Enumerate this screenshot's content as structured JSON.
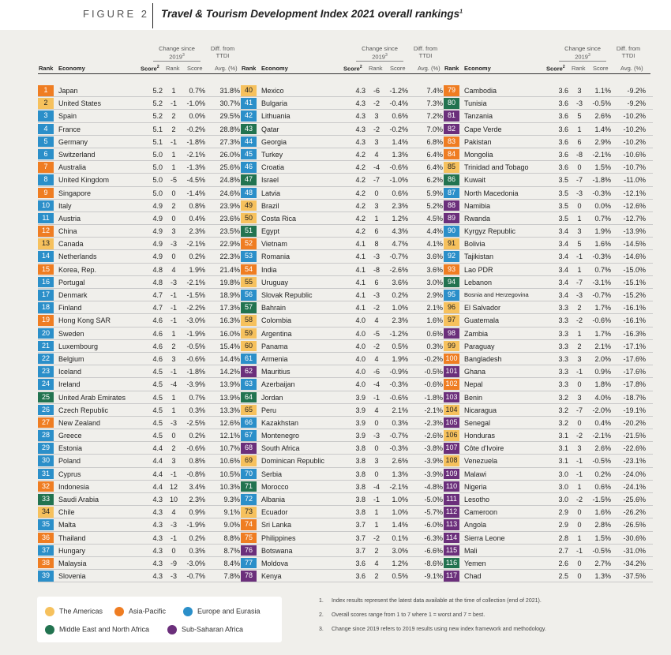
{
  "figure": {
    "label": "FIGURE 2",
    "title": "Travel & Tourism Development Index 2021 overall rankings",
    "title_sup": "1"
  },
  "table_headers": {
    "rank": "Rank",
    "economy": "Economy",
    "score": "Score",
    "score_sup": "2",
    "change_group": "Change since 2019",
    "change_sup": "3",
    "change_rank": "Rank",
    "change_score": "Score",
    "diff_group": "Diff. from TTDI",
    "diff_sub": "Avg. (%)"
  },
  "region_colors": {
    "am": "#f6c15d",
    "ap": "#ef7d22",
    "ee": "#2b8fc9",
    "me": "#227350",
    "ss": "#6b2f7b"
  },
  "legend": [
    {
      "region": "am",
      "label": "The Americas"
    },
    {
      "region": "ap",
      "label": "Asia-Pacific"
    },
    {
      "region": "ee",
      "label": "Europe and Eurasia"
    },
    {
      "region": "me",
      "label": "Middle East and North Africa"
    },
    {
      "region": "ss",
      "label": "Sub-Saharan Africa"
    }
  ],
  "notes": [
    {
      "num": "1.",
      "text": "Index results represent the latest data available at the time of collection (end of 2021)."
    },
    {
      "num": "2.",
      "text": "Overall scores range from 1 to 7 where 1 = worst and 7 = best."
    },
    {
      "num": "3.",
      "text": "Change since 2019 refers to 2019 results using new index framework and methodology."
    }
  ],
  "rows": [
    [
      "1",
      "Japan",
      "5.2",
      "1",
      "0.7%",
      "31.8%",
      "ap"
    ],
    [
      "2",
      "United States",
      "5.2",
      "-1",
      "-1.0%",
      "30.7%",
      "am"
    ],
    [
      "3",
      "Spain",
      "5.2",
      "2",
      "0.0%",
      "29.5%",
      "ee"
    ],
    [
      "4",
      "France",
      "5.1",
      "2",
      "-0.2%",
      "28.8%",
      "ee"
    ],
    [
      "5",
      "Germany",
      "5.1",
      "-1",
      "-1.8%",
      "27.3%",
      "ee"
    ],
    [
      "6",
      "Switzerland",
      "5.0",
      "1",
      "-2.1%",
      "26.0%",
      "ee"
    ],
    [
      "7",
      "Australia",
      "5.0",
      "1",
      "-1.3%",
      "25.6%",
      "ap"
    ],
    [
      "8",
      "United Kingdom",
      "5.0",
      "-5",
      "-4.5%",
      "24.8%",
      "ee"
    ],
    [
      "9",
      "Singapore",
      "5.0",
      "0",
      "-1.4%",
      "24.6%",
      "ap"
    ],
    [
      "10",
      "Italy",
      "4.9",
      "2",
      "0.8%",
      "23.9%",
      "ee"
    ],
    [
      "11",
      "Austria",
      "4.9",
      "0",
      "0.4%",
      "23.6%",
      "ee"
    ],
    [
      "12",
      "China",
      "4.9",
      "3",
      "2.3%",
      "23.5%",
      "ap"
    ],
    [
      "13",
      "Canada",
      "4.9",
      "-3",
      "-2.1%",
      "22.9%",
      "am"
    ],
    [
      "14",
      "Netherlands",
      "4.9",
      "0",
      "0.2%",
      "22.3%",
      "ee"
    ],
    [
      "15",
      "Korea, Rep.",
      "4.8",
      "4",
      "1.9%",
      "21.4%",
      "ap"
    ],
    [
      "16",
      "Portugal",
      "4.8",
      "-3",
      "-2.1%",
      "19.8%",
      "ee"
    ],
    [
      "17",
      "Denmark",
      "4.7",
      "-1",
      "-1.5%",
      "18.9%",
      "ee"
    ],
    [
      "18",
      "Finland",
      "4.7",
      "-1",
      "-2.2%",
      "17.3%",
      "ee"
    ],
    [
      "19",
      "Hong Kong SAR",
      "4.6",
      "-1",
      "-3.0%",
      "16.3%",
      "ap"
    ],
    [
      "20",
      "Sweden",
      "4.6",
      "1",
      "-1.9%",
      "16.0%",
      "ee"
    ],
    [
      "21",
      "Luxembourg",
      "4.6",
      "2",
      "-0.5%",
      "15.4%",
      "ee"
    ],
    [
      "22",
      "Belgium",
      "4.6",
      "3",
      "-0.6%",
      "14.4%",
      "ee"
    ],
    [
      "23",
      "Iceland",
      "4.5",
      "-1",
      "-1.8%",
      "14.2%",
      "ee"
    ],
    [
      "24",
      "Ireland",
      "4.5",
      "-4",
      "-3.9%",
      "13.9%",
      "ee"
    ],
    [
      "25",
      "United Arab Emirates",
      "4.5",
      "1",
      "0.7%",
      "13.9%",
      "me"
    ],
    [
      "26",
      "Czech Republic",
      "4.5",
      "1",
      "0.3%",
      "13.3%",
      "ee"
    ],
    [
      "27",
      "New Zealand",
      "4.5",
      "-3",
      "-2.5%",
      "12.6%",
      "ap"
    ],
    [
      "28",
      "Greece",
      "4.5",
      "0",
      "0.2%",
      "12.1%",
      "ee"
    ],
    [
      "29",
      "Estonia",
      "4.4",
      "2",
      "-0.6%",
      "10.7%",
      "ee"
    ],
    [
      "30",
      "Poland",
      "4.4",
      "3",
      "0.8%",
      "10.6%",
      "ee"
    ],
    [
      "31",
      "Cyprus",
      "4.4",
      "-1",
      "-0.8%",
      "10.5%",
      "ee"
    ],
    [
      "32",
      "Indonesia",
      "4.4",
      "12",
      "3.4%",
      "10.3%",
      "ap"
    ],
    [
      "33",
      "Saudi Arabia",
      "4.3",
      "10",
      "2.3%",
      "9.3%",
      "me"
    ],
    [
      "34",
      "Chile",
      "4.3",
      "4",
      "0.9%",
      "9.1%",
      "am"
    ],
    [
      "35",
      "Malta",
      "4.3",
      "-3",
      "-1.9%",
      "9.0%",
      "ee"
    ],
    [
      "36",
      "Thailand",
      "4.3",
      "-1",
      "0.2%",
      "8.8%",
      "ap"
    ],
    [
      "37",
      "Hungary",
      "4.3",
      "0",
      "0.3%",
      "8.7%",
      "ee"
    ],
    [
      "38",
      "Malaysia",
      "4.3",
      "-9",
      "-3.0%",
      "8.4%",
      "ap"
    ],
    [
      "39",
      "Slovenia",
      "4.3",
      "-3",
      "-0.7%",
      "7.8%",
      "ee"
    ],
    [
      "40",
      "Mexico",
      "4.3",
      "-6",
      "-1.2%",
      "7.4%",
      "am"
    ],
    [
      "41",
      "Bulgaria",
      "4.3",
      "-2",
      "-0.4%",
      "7.3%",
      "ee"
    ],
    [
      "42",
      "Lithuania",
      "4.3",
      "3",
      "0.6%",
      "7.2%",
      "ee"
    ],
    [
      "43",
      "Qatar",
      "4.3",
      "-2",
      "-0.2%",
      "7.0%",
      "me"
    ],
    [
      "44",
      "Georgia",
      "4.3",
      "3",
      "1.4%",
      "6.8%",
      "ee"
    ],
    [
      "45",
      "Turkey",
      "4.2",
      "4",
      "1.3%",
      "6.4%",
      "ee"
    ],
    [
      "46",
      "Croatia",
      "4.2",
      "-4",
      "-0.6%",
      "6.4%",
      "ee"
    ],
    [
      "47",
      "Israel",
      "4.2",
      "-7",
      "-1.0%",
      "6.2%",
      "me"
    ],
    [
      "48",
      "Latvia",
      "4.2",
      "0",
      "0.6%",
      "5.9%",
      "ee"
    ],
    [
      "49",
      "Brazil",
      "4.2",
      "3",
      "2.3%",
      "5.2%",
      "am"
    ],
    [
      "50",
      "Costa Rica",
      "4.2",
      "1",
      "1.2%",
      "4.5%",
      "am"
    ],
    [
      "51",
      "Egypt",
      "4.2",
      "6",
      "4.3%",
      "4.4%",
      "me"
    ],
    [
      "52",
      "Vietnam",
      "4.1",
      "8",
      "4.7%",
      "4.1%",
      "ap"
    ],
    [
      "53",
      "Romania",
      "4.1",
      "-3",
      "-0.7%",
      "3.6%",
      "ee"
    ],
    [
      "54",
      "India",
      "4.1",
      "-8",
      "-2.6%",
      "3.6%",
      "ap"
    ],
    [
      "55",
      "Uruguay",
      "4.1",
      "6",
      "3.6%",
      "3.0%",
      "am"
    ],
    [
      "56",
      "Slovak Republic",
      "4.1",
      "-3",
      "0.2%",
      "2.9%",
      "ee"
    ],
    [
      "57",
      "Bahrain",
      "4.1",
      "-2",
      "1.0%",
      "2.1%",
      "me"
    ],
    [
      "58",
      "Colombia",
      "4.0",
      "4",
      "2.3%",
      "1.6%",
      "am"
    ],
    [
      "59",
      "Argentina",
      "4.0",
      "-5",
      "-1.2%",
      "0.6%",
      "am"
    ],
    [
      "60",
      "Panama",
      "4.0",
      "-2",
      "0.5%",
      "0.3%",
      "am"
    ],
    [
      "61",
      "Armenia",
      "4.0",
      "4",
      "1.9%",
      "-0.2%",
      "ee"
    ],
    [
      "62",
      "Mauritius",
      "4.0",
      "-6",
      "-0.9%",
      "-0.5%",
      "ss"
    ],
    [
      "63",
      "Azerbaijan",
      "4.0",
      "-4",
      "-0.3%",
      "-0.6%",
      "ee"
    ],
    [
      "64",
      "Jordan",
      "3.9",
      "-1",
      "-0.6%",
      "-1.8%",
      "me"
    ],
    [
      "65",
      "Peru",
      "3.9",
      "4",
      "2.1%",
      "-2.1%",
      "am"
    ],
    [
      "66",
      "Kazakhstan",
      "3.9",
      "0",
      "0.3%",
      "-2.3%",
      "ee"
    ],
    [
      "67",
      "Montenegro",
      "3.9",
      "-3",
      "-0.7%",
      "-2.6%",
      "ee"
    ],
    [
      "68",
      "South Africa",
      "3.8",
      "0",
      "-0.3%",
      "-3.8%",
      "ss"
    ],
    [
      "69",
      "Dominican Republic",
      "3.8",
      "3",
      "2.6%",
      "-3.9%",
      "am"
    ],
    [
      "70",
      "Serbia",
      "3.8",
      "0",
      "1.3%",
      "-3.9%",
      "ee"
    ],
    [
      "71",
      "Morocco",
      "3.8",
      "-4",
      "-2.1%",
      "-4.8%",
      "me"
    ],
    [
      "72",
      "Albania",
      "3.8",
      "-1",
      "1.0%",
      "-5.0%",
      "ee"
    ],
    [
      "73",
      "Ecuador",
      "3.8",
      "1",
      "1.0%",
      "-5.7%",
      "am"
    ],
    [
      "74",
      "Sri Lanka",
      "3.7",
      "1",
      "1.4%",
      "-6.0%",
      "ap"
    ],
    [
      "75",
      "Philippines",
      "3.7",
      "-2",
      "0.1%",
      "-6.3%",
      "ap"
    ],
    [
      "76",
      "Botswana",
      "3.7",
      "2",
      "3.0%",
      "-6.6%",
      "ss"
    ],
    [
      "77",
      "Moldova",
      "3.6",
      "4",
      "1.2%",
      "-8.6%",
      "ee"
    ],
    [
      "78",
      "Kenya",
      "3.6",
      "2",
      "0.5%",
      "-9.1%",
      "ss"
    ],
    [
      "79",
      "Cambodia",
      "3.6",
      "3",
      "1.1%",
      "-9.2%",
      "ap"
    ],
    [
      "80",
      "Tunisia",
      "3.6",
      "-3",
      "-0.5%",
      "-9.2%",
      "me"
    ],
    [
      "81",
      "Tanzania",
      "3.6",
      "5",
      "2.6%",
      "-10.2%",
      "ss"
    ],
    [
      "82",
      "Cape Verde",
      "3.6",
      "1",
      "1.4%",
      "-10.2%",
      "ss"
    ],
    [
      "83",
      "Pakistan",
      "3.6",
      "6",
      "2.9%",
      "-10.2%",
      "ap"
    ],
    [
      "84",
      "Mongolia",
      "3.6",
      "-8",
      "-2.1%",
      "-10.6%",
      "ap"
    ],
    [
      "85",
      "Trinidad and Tobago",
      "3.6",
      "0",
      "1.5%",
      "-10.7%",
      "am"
    ],
    [
      "86",
      "Kuwait",
      "3.5",
      "-7",
      "-1.8%",
      "-11.0%",
      "me"
    ],
    [
      "87",
      "North Macedonia",
      "3.5",
      "-3",
      "-0.3%",
      "-12.1%",
      "ee"
    ],
    [
      "88",
      "Namibia",
      "3.5",
      "0",
      "0.0%",
      "-12.6%",
      "ss"
    ],
    [
      "89",
      "Rwanda",
      "3.5",
      "1",
      "0.7%",
      "-12.7%",
      "ss"
    ],
    [
      "90",
      "Kyrgyz Republic",
      "3.4",
      "3",
      "1.9%",
      "-13.9%",
      "ee"
    ],
    [
      "91",
      "Bolivia",
      "3.4",
      "5",
      "1.6%",
      "-14.5%",
      "am"
    ],
    [
      "92",
      "Tajikistan",
      "3.4",
      "-1",
      "-0.3%",
      "-14.6%",
      "ee"
    ],
    [
      "93",
      "Lao PDR",
      "3.4",
      "1",
      "0.7%",
      "-15.0%",
      "ap"
    ],
    [
      "94",
      "Lebanon",
      "3.4",
      "-7",
      "-3.1%",
      "-15.1%",
      "me"
    ],
    [
      "95",
      "Bosnia and Herzegovina",
      "3.4",
      "-3",
      "-0.7%",
      "-15.2%",
      "ee"
    ],
    [
      "96",
      "El Salvador",
      "3.3",
      "2",
      "1.7%",
      "-16.1%",
      "am"
    ],
    [
      "97",
      "Guatemala",
      "3.3",
      "-2",
      "-0.6%",
      "-16.1%",
      "am"
    ],
    [
      "98",
      "Zambia",
      "3.3",
      "1",
      "1.7%",
      "-16.3%",
      "ss"
    ],
    [
      "99",
      "Paraguay",
      "3.3",
      "2",
      "2.1%",
      "-17.1%",
      "am"
    ],
    [
      "100",
      "Bangladesh",
      "3.3",
      "3",
      "2.0%",
      "-17.6%",
      "ap"
    ],
    [
      "101",
      "Ghana",
      "3.3",
      "-1",
      "0.9%",
      "-17.6%",
      "ss"
    ],
    [
      "102",
      "Nepal",
      "3.3",
      "0",
      "1.8%",
      "-17.8%",
      "ap"
    ],
    [
      "103",
      "Benin",
      "3.2",
      "3",
      "4.0%",
      "-18.7%",
      "ss"
    ],
    [
      "104",
      "Nicaragua",
      "3.2",
      "-7",
      "-2.0%",
      "-19.1%",
      "am"
    ],
    [
      "105",
      "Senegal",
      "3.2",
      "0",
      "0.4%",
      "-20.2%",
      "ss"
    ],
    [
      "106",
      "Honduras",
      "3.1",
      "-2",
      "-2.1%",
      "-21.5%",
      "am"
    ],
    [
      "107",
      "Côte d'Ivoire",
      "3.1",
      "3",
      "2.6%",
      "-22.6%",
      "ss"
    ],
    [
      "108",
      "Venezuela",
      "3.1",
      "-1",
      "-0.5%",
      "-23.1%",
      "am"
    ],
    [
      "109",
      "Malawi",
      "3.0",
      "-1",
      "0.2%",
      "-24.0%",
      "ss"
    ],
    [
      "110",
      "Nigeria",
      "3.0",
      "1",
      "0.6%",
      "-24.1%",
      "ss"
    ],
    [
      "111",
      "Lesotho",
      "3.0",
      "-2",
      "-1.5%",
      "-25.6%",
      "ss"
    ],
    [
      "112",
      "Cameroon",
      "2.9",
      "0",
      "1.6%",
      "-26.2%",
      "ss"
    ],
    [
      "113",
      "Angola",
      "2.9",
      "0",
      "2.8%",
      "-26.5%",
      "ss"
    ],
    [
      "114",
      "Sierra Leone",
      "2.8",
      "1",
      "1.5%",
      "-30.6%",
      "ss"
    ],
    [
      "115",
      "Mali",
      "2.7",
      "-1",
      "-0.5%",
      "-31.0%",
      "ss"
    ],
    [
      "116",
      "Yemen",
      "2.6",
      "0",
      "2.7%",
      "-34.2%",
      "me"
    ],
    [
      "117",
      "Chad",
      "2.5",
      "0",
      "1.3%",
      "-37.5%",
      "ss"
    ]
  ]
}
